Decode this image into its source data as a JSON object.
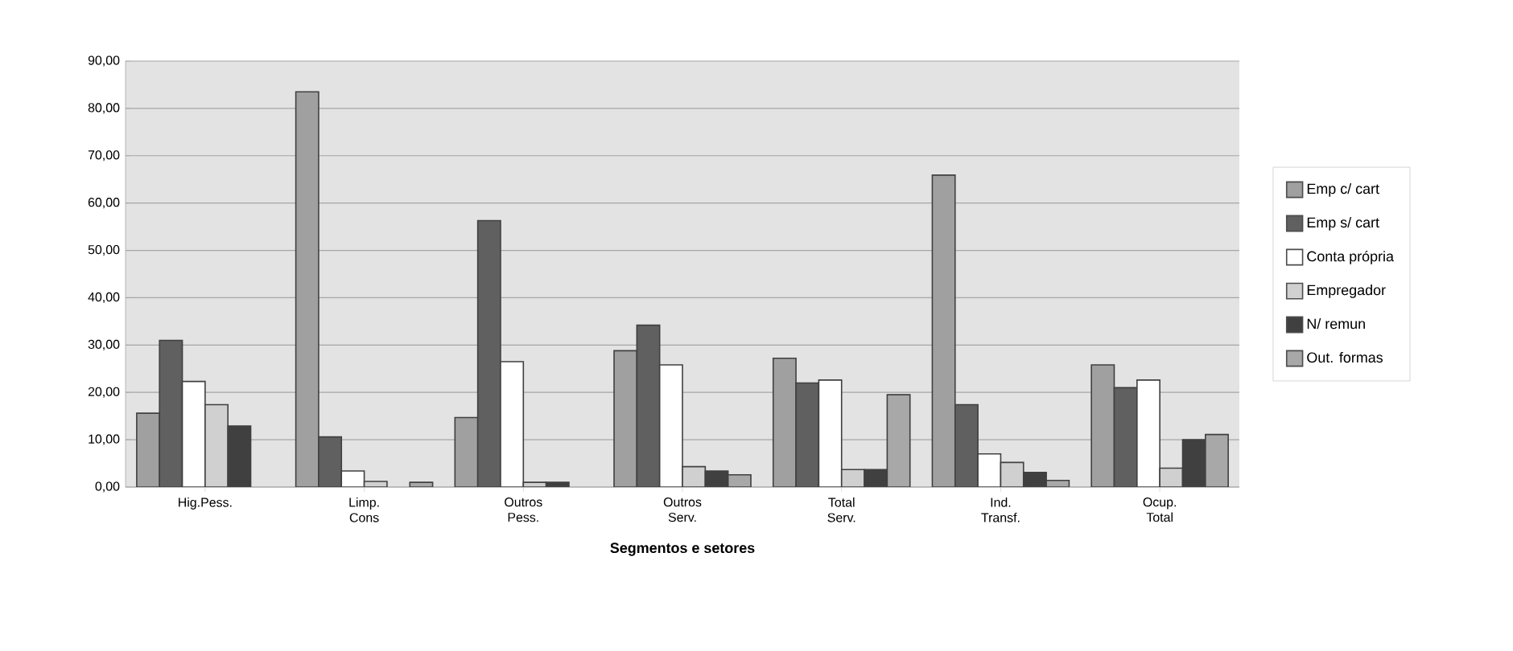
{
  "chart_data": {
    "type": "bar",
    "xlabel": "Segmentos e setores",
    "categories": [
      "Hig.Pess.",
      "Limp. Cons",
      "Outros Pess.",
      "Outros Serv.",
      "Total Serv.",
      "Ind. Transf.",
      "Ocup. Total"
    ],
    "series": [
      {
        "name": "Emp c/ cart",
        "color": "#a0a0a0",
        "values": [
          15.6,
          83.5,
          14.7,
          28.8,
          27.2,
          65.9,
          25.8
        ]
      },
      {
        "name": "Emp s/ cart",
        "color": "#606060",
        "values": [
          31.0,
          10.6,
          56.3,
          34.2,
          22.0,
          17.4,
          21.0
        ]
      },
      {
        "name": "Conta própria",
        "color": "#ffffff",
        "values": [
          22.3,
          3.4,
          26.5,
          25.8,
          22.6,
          7.0,
          22.6
        ]
      },
      {
        "name": "Empregador",
        "color": "#d0d0d0",
        "values": [
          17.4,
          1.2,
          1.0,
          4.3,
          3.7,
          5.2,
          4.0
        ]
      },
      {
        "name": "N/ remun",
        "color": "#404040",
        "values": [
          12.9,
          null,
          1.0,
          3.4,
          3.7,
          3.1,
          10.0
        ]
      },
      {
        "name": "Out. formas",
        "color": "#a8a8a8",
        "values": [
          null,
          1.0,
          null,
          2.6,
          19.5,
          1.4,
          11.1
        ]
      }
    ],
    "ylim": [
      0,
      90
    ],
    "yticks": [
      {
        "value": 0,
        "label": "0,00"
      },
      {
        "value": 10,
        "label": "10,00"
      },
      {
        "value": 20,
        "label": "20,00"
      },
      {
        "value": 30,
        "label": "30,00"
      },
      {
        "value": 40,
        "label": "40,00"
      },
      {
        "value": 50,
        "label": "50,00"
      },
      {
        "value": 60,
        "label": "60,00"
      },
      {
        "value": 70,
        "label": "70,00"
      },
      {
        "value": 80,
        "label": "80,00"
      },
      {
        "value": 90,
        "label": "90,00"
      }
    ],
    "grid": "y",
    "legend": "right"
  }
}
